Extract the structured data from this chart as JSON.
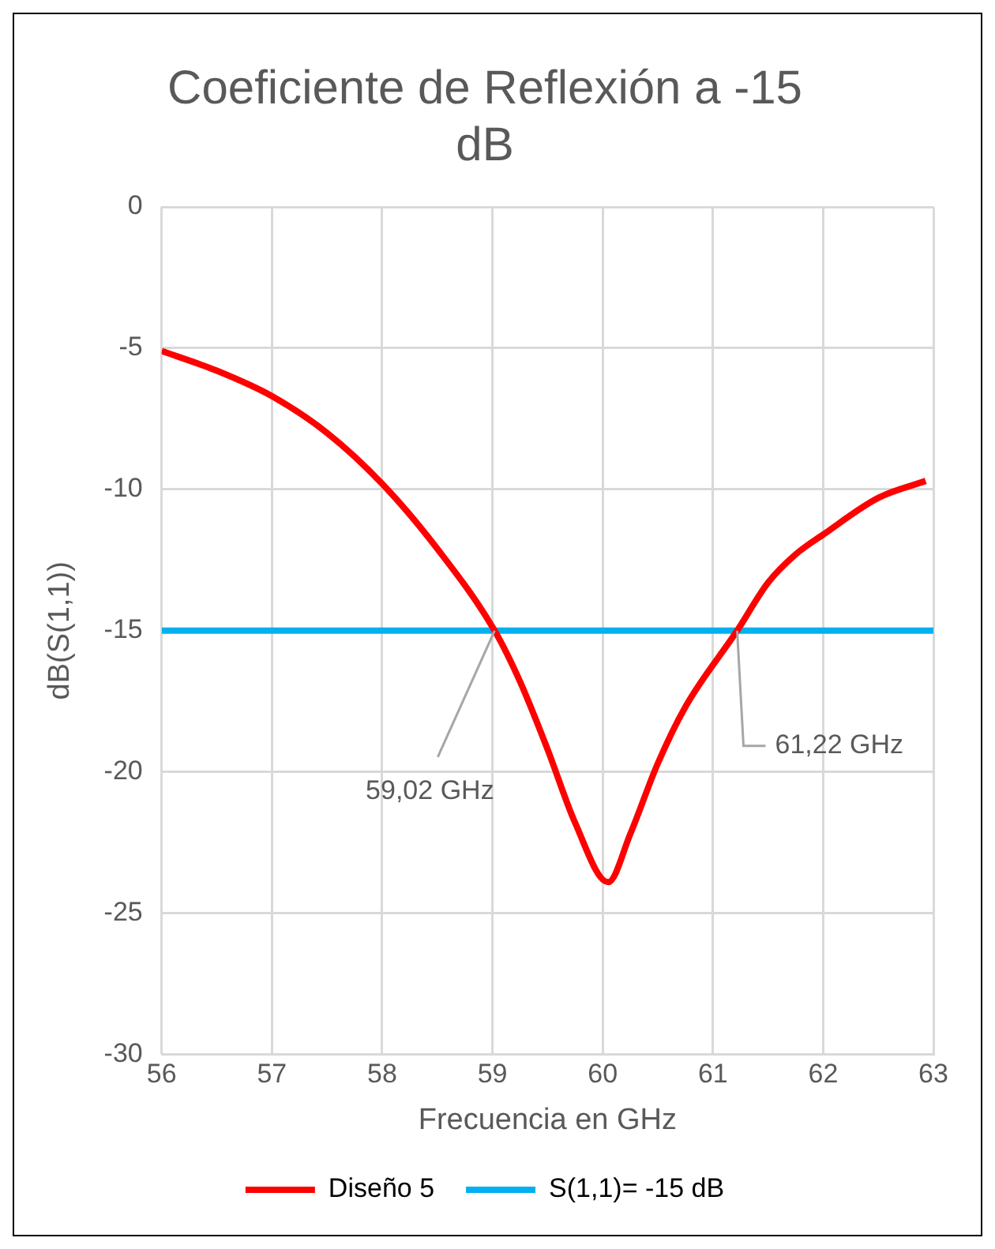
{
  "chart_data": {
    "type": "line",
    "title": "Coeficiente de Reflexión a -15 dB",
    "xlabel": "Frecuencia en GHz",
    "ylabel": "dB(S(1,1))",
    "xlim": [
      56,
      63
    ],
    "xticks": [
      56,
      57,
      58,
      59,
      60,
      61,
      62,
      63
    ],
    "ylim": [
      -30,
      0
    ],
    "yticks": [
      -30,
      -25,
      -20,
      -15,
      -10,
      -5,
      0
    ],
    "grid": true,
    "legend": "bottom",
    "marker": "none",
    "series": [
      {
        "name": "Diseño 5",
        "color": "#ff0000",
        "x": [
          56,
          56.5,
          57,
          57.5,
          58,
          58.5,
          59.02,
          59.25,
          59.5,
          59.75,
          60.05,
          60.25,
          60.5,
          60.75,
          61.22,
          61.5,
          61.75,
          62,
          62.5,
          62.93
        ],
        "values": [
          -5.1,
          -5.8,
          -6.7,
          -8.0,
          -9.8,
          -12.1,
          -15,
          -16.8,
          -19.2,
          -21.8,
          -23.9,
          -22.2,
          -19.7,
          -17.7,
          -15,
          -13.3,
          -12.3,
          -11.6,
          -10.3,
          -9.7
        ]
      },
      {
        "name": "S(1,1)= -15 dB",
        "color": "#00b0f0",
        "x": [
          56,
          63
        ],
        "values": [
          -15,
          -15
        ]
      }
    ],
    "annotations": [
      {
        "text": "59,02 GHz",
        "x": 59.02,
        "y": -15
      },
      {
        "text": "61,22 GHz",
        "x": 61.22,
        "y": -15
      }
    ]
  }
}
